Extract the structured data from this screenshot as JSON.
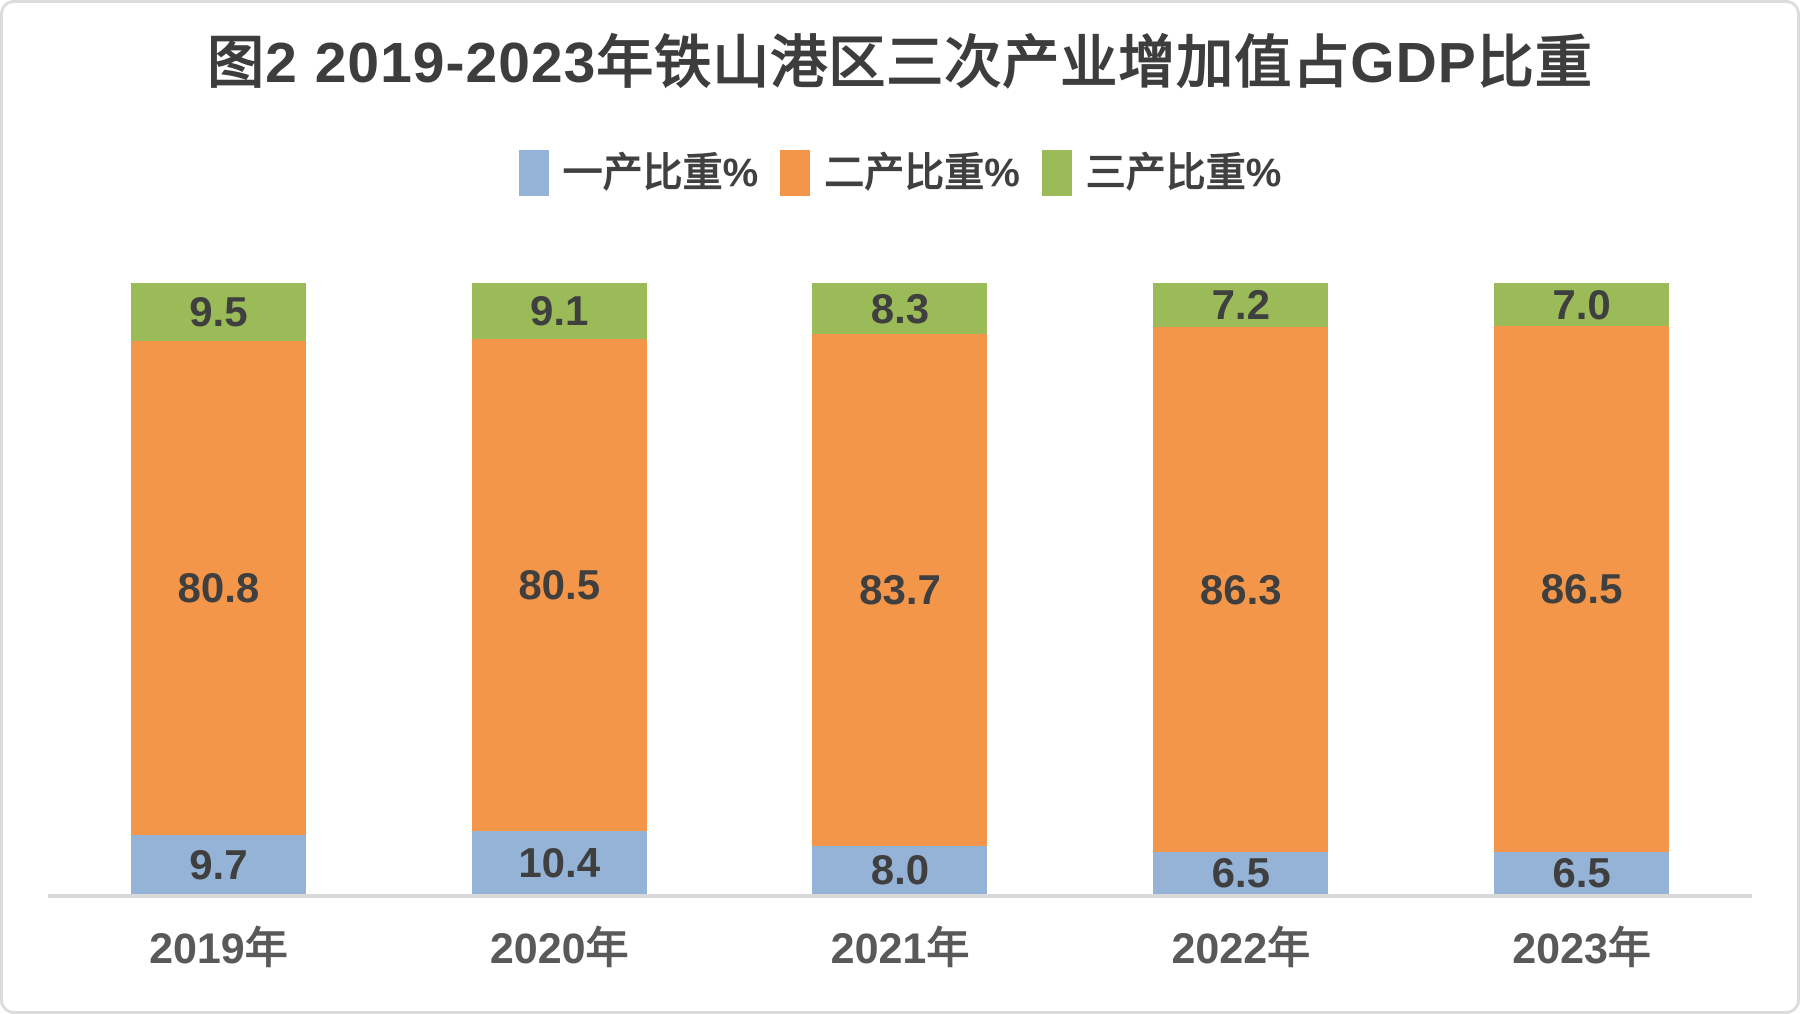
{
  "title": "图2 2019-2023年铁山港区三次产业增加值占GDP比重",
  "colors": {
    "series_blue": "#95B3D7",
    "series_orange": "#F49649",
    "series_green": "#9BBB59",
    "axis_line": "#D9D9D9",
    "value_label_text": "#3F3F3F",
    "axis_label_text": "#595959",
    "title_text": "#3D3D3D"
  },
  "chart_data": {
    "type": "bar",
    "stacked": true,
    "title": "图2 2019-2023年铁山港区三次产业增加值占GDP比重",
    "categories": [
      "2019年",
      "2020年",
      "2021年",
      "2022年",
      "2023年"
    ],
    "series": [
      {
        "name": "一产比重%",
        "color": "#95B3D7",
        "values": [
          9.7,
          10.4,
          8.0,
          6.5,
          6.5
        ]
      },
      {
        "name": "二产比重%",
        "color": "#F49649",
        "values": [
          80.8,
          80.5,
          83.7,
          86.3,
          86.5
        ]
      },
      {
        "name": "三产比重%",
        "color": "#9BBB59",
        "values": [
          9.5,
          9.1,
          8.3,
          7.2,
          7.0
        ]
      }
    ],
    "xlabel": "",
    "ylabel": "",
    "ylim": [
      0,
      100
    ],
    "grid": false,
    "legend_position": "top",
    "value_labels": true
  }
}
